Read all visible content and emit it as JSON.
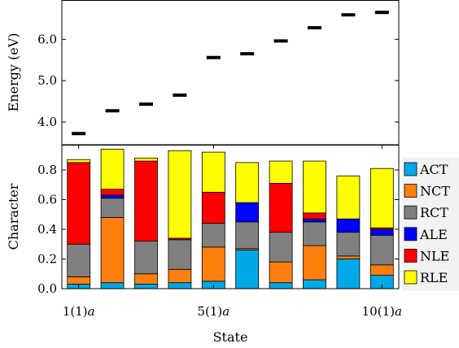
{
  "chart_data": [
    {
      "type": "scatter",
      "ylabel": "Energy (eV)",
      "xlabel": "",
      "ylim": [
        3.45,
        6.95
      ],
      "yticks": [
        4.0,
        5.0,
        6.0
      ],
      "ytick_labels": [
        "4.0",
        "5.0",
        "6.0"
      ],
      "x": [
        1,
        2,
        3,
        4,
        5,
        6,
        7,
        8,
        9,
        10
      ],
      "y": [
        3.72,
        4.27,
        4.43,
        4.65,
        5.56,
        5.65,
        5.96,
        6.28,
        6.59,
        6.65
      ],
      "marker": "horizontal-dash",
      "color": "#000000"
    },
    {
      "type": "bar",
      "stacked": true,
      "ylabel": "Character",
      "xlabel": "State",
      "ylim": [
        0,
        0.97
      ],
      "yticks": [
        0.0,
        0.2,
        0.4,
        0.6,
        0.8
      ],
      "ytick_labels": [
        "0.0",
        "0.2",
        "0.4",
        "0.6",
        "0.8"
      ],
      "x": [
        1,
        2,
        3,
        4,
        5,
        6,
        7,
        8,
        9,
        10
      ],
      "xticks": [
        1,
        5,
        10
      ],
      "xtick_labels": [
        "1(1)a",
        "5(1)a",
        "10(1)a"
      ],
      "legend_position": "outside-right",
      "series": [
        {
          "name": "ACT",
          "color": "#00a8e8",
          "values": [
            0.03,
            0.04,
            0.03,
            0.04,
            0.05,
            0.26,
            0.04,
            0.06,
            0.2,
            0.09
          ]
        },
        {
          "name": "NCT",
          "color": "#ff7f0e",
          "values": [
            0.05,
            0.44,
            0.07,
            0.09,
            0.23,
            0.01,
            0.14,
            0.23,
            0.02,
            0.07
          ]
        },
        {
          "name": "RCT",
          "color": "#808080",
          "values": [
            0.22,
            0.13,
            0.22,
            0.2,
            0.16,
            0.18,
            0.2,
            0.16,
            0.16,
            0.2
          ]
        },
        {
          "name": "ALE",
          "color": "#0000ff",
          "values": [
            0.0,
            0.02,
            0.0,
            0.0,
            0.0,
            0.13,
            0.0,
            0.02,
            0.09,
            0.04
          ]
        },
        {
          "name": "NLE",
          "color": "#ff0000",
          "values": [
            0.55,
            0.04,
            0.54,
            0.01,
            0.21,
            0.0,
            0.33,
            0.04,
            0.0,
            0.01
          ]
        },
        {
          "name": "RLE",
          "color": "#ffff00",
          "values": [
            0.02,
            0.27,
            0.02,
            0.59,
            0.27,
            0.27,
            0.15,
            0.35,
            0.29,
            0.4
          ]
        }
      ]
    }
  ]
}
